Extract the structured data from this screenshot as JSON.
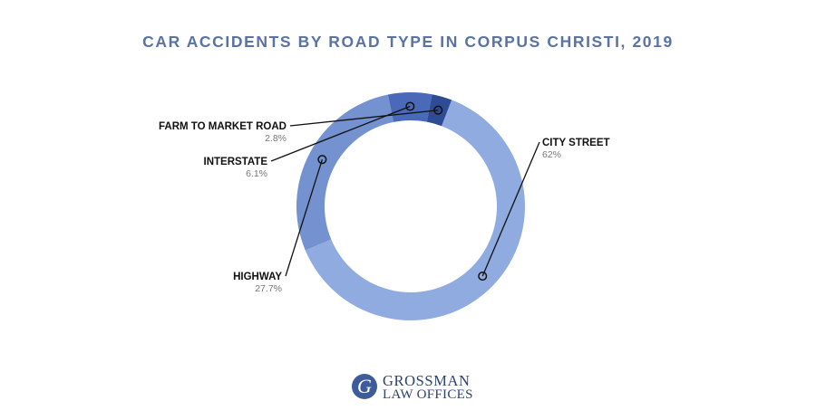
{
  "chart_data": {
    "type": "pie",
    "donut": true,
    "title": "CAR ACCIDENTS BY ROAD TYPE IN CORPUS CHRISTI, 2019",
    "legend": "none",
    "slices": [
      {
        "label": "CITY STREET",
        "value": 62,
        "display": "62%",
        "color": "#90abe0"
      },
      {
        "label": "HIGHWAY",
        "value": 27.7,
        "display": "27.7%",
        "color": "#7392cf"
      },
      {
        "label": "INTERSTATE",
        "value": 6.1,
        "display": "6.1%",
        "color": "#4a6ab9"
      },
      {
        "label": "FARM TO MARKET ROAD",
        "value": 2.8,
        "display": "2.8%",
        "color": "#2e4c94"
      }
    ]
  },
  "brand": {
    "logo_initial": "G",
    "name_line1": "GROSSMAN",
    "name_line2": "LAW OFFICES",
    "color": "#3e5b9a"
  }
}
